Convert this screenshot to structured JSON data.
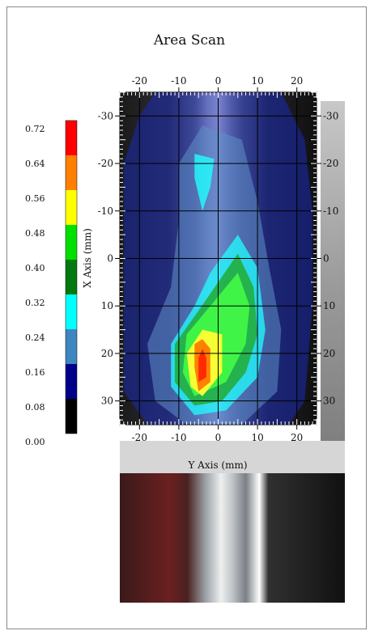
{
  "chart_data": {
    "type": "heatmap",
    "title": "Area Scan",
    "xlabel": "Y Axis (mm)",
    "ylabel": "X Axis (mm)",
    "x_range": [
      -25,
      25
    ],
    "y_range": [
      -35,
      35
    ],
    "x_ticks": [
      "-20",
      "-10",
      "0",
      "10",
      "20"
    ],
    "y_ticks": [
      "-30",
      "-20",
      "-10",
      "0",
      "10",
      "20",
      "30"
    ],
    "y_tick_values": [
      -30,
      -20,
      -10,
      0,
      10,
      20,
      30
    ],
    "x_tick_values": [
      -20,
      -10,
      0,
      10,
      20
    ],
    "right_ticks": [
      "-30",
      "-20",
      "-10",
      "0",
      "10",
      "20",
      "30"
    ],
    "grid": true,
    "colorbar": {
      "ticks": [
        "0.72",
        "0.64",
        "0.56",
        "0.48",
        "0.40",
        "0.32",
        "0.24",
        "0.16",
        "0.08",
        "0.00"
      ],
      "colors": [
        "#ff0000",
        "#ff7f00",
        "#ffff00",
        "#00e000",
        "#007a10",
        "#00ffff",
        "#3d86c0",
        "#00008b",
        "#000000"
      ]
    },
    "contours": [
      {
        "level": 0.08,
        "color": "#1a2ab0",
        "opacity": 0.55,
        "points": [
          [
            -16,
            -35
          ],
          [
            16,
            -35
          ],
          [
            22,
            -25
          ],
          [
            24,
            -10
          ],
          [
            24,
            10
          ],
          [
            22,
            30
          ],
          [
            18,
            35
          ],
          [
            -18,
            35
          ],
          [
            -24,
            28
          ],
          [
            -24,
            -20
          ],
          [
            -20,
            -30
          ]
        ]
      },
      {
        "level": 0.16,
        "color": "#5f8fc8",
        "opacity": 0.55,
        "points": [
          [
            -4,
            -28
          ],
          [
            6,
            -25
          ],
          [
            10,
            -12
          ],
          [
            13,
            2
          ],
          [
            16,
            15
          ],
          [
            15,
            28
          ],
          [
            6,
            35
          ],
          [
            -8,
            35
          ],
          [
            -16,
            30
          ],
          [
            -18,
            18
          ],
          [
            -12,
            6
          ],
          [
            -10,
            -8
          ],
          [
            -10,
            -20
          ]
        ]
      },
      {
        "level": 0.24,
        "color": "#20ffff",
        "opacity": 0.75,
        "points": [
          [
            5,
            -5
          ],
          [
            10,
            2
          ],
          [
            12,
            15
          ],
          [
            10,
            25
          ],
          [
            2,
            32
          ],
          [
            -6,
            33
          ],
          [
            -12,
            27
          ],
          [
            -12,
            18
          ],
          [
            -6,
            10
          ],
          [
            -2,
            3
          ]
        ]
      },
      {
        "level": 0.24,
        "color": "#20ffff",
        "opacity": 0.8,
        "points": [
          [
            -6,
            -22
          ],
          [
            -1,
            -21
          ],
          [
            -2,
            -15
          ],
          [
            -4,
            -10
          ],
          [
            -6,
            -17
          ]
        ]
      },
      {
        "level": 0.32,
        "color": "#22aa33",
        "opacity": 0.85,
        "points": [
          [
            5,
            -1
          ],
          [
            9,
            6
          ],
          [
            10,
            16
          ],
          [
            7,
            24
          ],
          [
            1,
            30
          ],
          [
            -6,
            31
          ],
          [
            -11,
            26
          ],
          [
            -11,
            18
          ],
          [
            -5,
            11
          ],
          [
            0,
            5
          ]
        ]
      },
      {
        "level": 0.4,
        "color": "#44ff44",
        "opacity": 0.85,
        "points": [
          [
            5,
            3
          ],
          [
            8,
            10
          ],
          [
            7,
            18
          ],
          [
            2,
            26
          ],
          [
            -6,
            29
          ],
          [
            -9,
            24
          ],
          [
            -8,
            16
          ],
          [
            -2,
            10
          ]
        ]
      },
      {
        "level": 0.48,
        "color": "#ffff33",
        "opacity": 0.95,
        "points": [
          [
            -4,
            15
          ],
          [
            1,
            16
          ],
          [
            1,
            24
          ],
          [
            -4,
            29
          ],
          [
            -7,
            27
          ],
          [
            -8,
            20
          ]
        ]
      },
      {
        "level": 0.56,
        "color": "#ff7a00",
        "opacity": 0.95,
        "points": [
          [
            -4,
            17
          ],
          [
            -2,
            19
          ],
          [
            -2,
            26
          ],
          [
            -5,
            28
          ],
          [
            -6,
            23
          ],
          [
            -6,
            18
          ]
        ]
      },
      {
        "level": 0.64,
        "color": "#ff2a00",
        "opacity": 1,
        "points": [
          [
            -4,
            19
          ],
          [
            -3,
            21
          ],
          [
            -3,
            25
          ],
          [
            -5,
            26
          ],
          [
            -5,
            21
          ]
        ]
      }
    ]
  }
}
